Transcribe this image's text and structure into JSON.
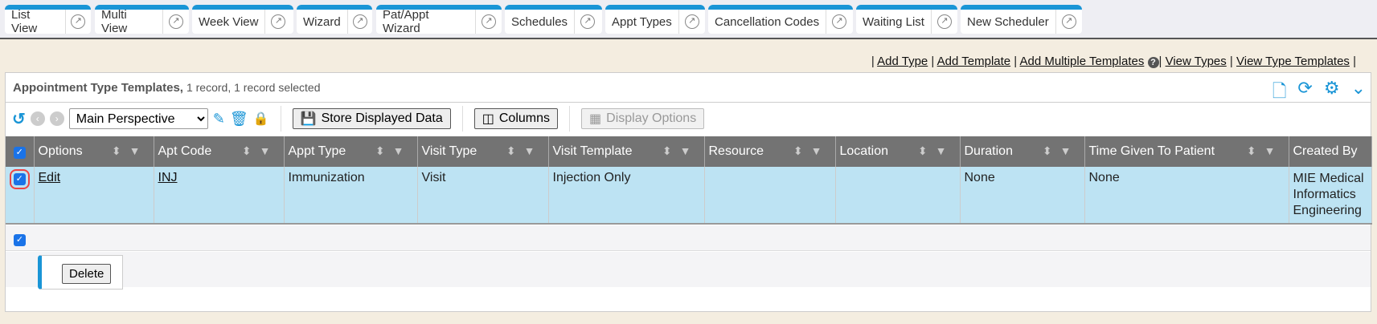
{
  "tabs": [
    "List View",
    "Multi View",
    "Week View",
    "Wizard",
    "Pat/Appt Wizard",
    "Schedules",
    "Appt Types",
    "Cancellation Codes",
    "Waiting List",
    "New Scheduler"
  ],
  "links": [
    "Add Type",
    "Add Template",
    "Add Multiple Templates",
    "View Types",
    "View Type Templates"
  ],
  "panel": {
    "title": "Appointment Type Templates,",
    "subtitle": "1 record, 1 record selected"
  },
  "toolbar": {
    "perspective": "Main Perspective",
    "store": "Store Displayed Data",
    "columns": "Columns",
    "display_options": "Display Options"
  },
  "table": {
    "columns": [
      "Options",
      "Apt Code",
      "Appt Type",
      "Visit Type",
      "Visit Template",
      "Resource",
      "Location",
      "Duration",
      "Time Given To Patient",
      "Created By"
    ],
    "rows": [
      {
        "checked": true,
        "options": "Edit",
        "apt_code": "INJ",
        "appt_type": "Immunization",
        "visit_type": "Visit",
        "visit_template": "Injection Only",
        "resource": "",
        "location": "",
        "duration": "None",
        "time_given": "None",
        "created_by": "MIE Medical Informatics Engineering"
      }
    ]
  },
  "footer": {
    "delete": "Delete"
  },
  "colors": {
    "accent": "#1a95d6",
    "header": "#737373",
    "selected_row": "#bde3f3"
  }
}
